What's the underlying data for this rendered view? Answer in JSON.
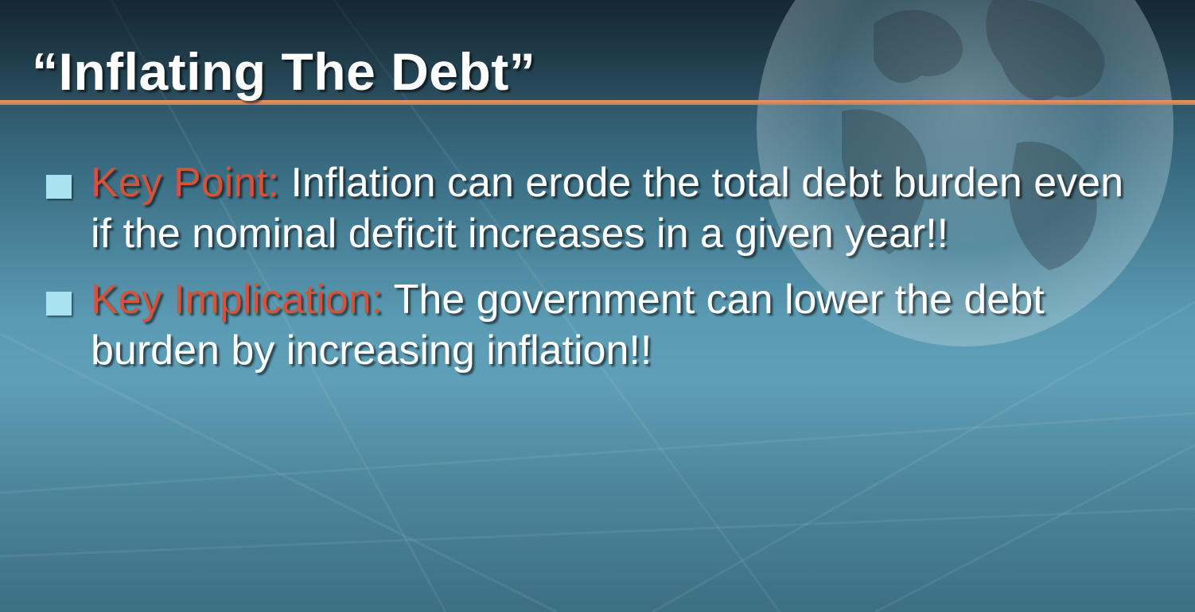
{
  "slide": {
    "title": "“Inflating The Debt”",
    "bullets": [
      {
        "keyword": "Key Point:",
        "text": "Inflation can erode the total debt burden even if the nominal deficit increases in a given year!!"
      },
      {
        "keyword": "Key Implication:",
        "text": "The government can lower the debt burden by increasing inflation!!"
      }
    ]
  },
  "colors": {
    "title_text": "#ffffff",
    "keyword": "#d4533b",
    "rule": "#d98a5c",
    "bullet_marker": "#a9e3f1",
    "background": "#5a9ab2"
  },
  "icons": {
    "bullet": "square-bullet-icon",
    "background_image": "globe-icon"
  }
}
